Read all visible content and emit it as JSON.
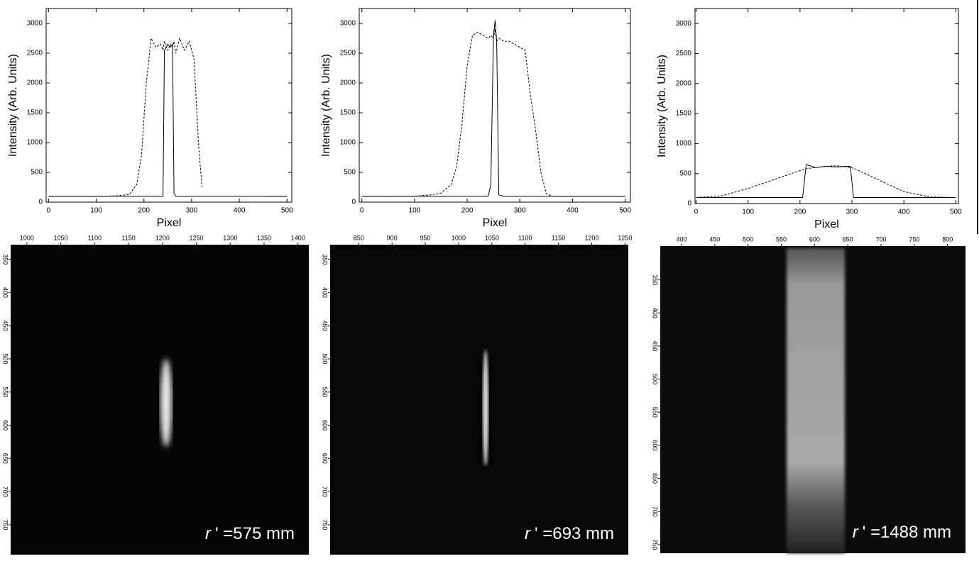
{
  "chart_data": [
    {
      "type": "line",
      "xlabel": "Pixel",
      "ylabel": "Intensity (Arb. Units)",
      "x": [
        0,
        40,
        80,
        120,
        150,
        170,
        185,
        195,
        205,
        215,
        225,
        235,
        240,
        243,
        247,
        250,
        255,
        260,
        263,
        267,
        275,
        285,
        295,
        305,
        315,
        322,
        330,
        360,
        400,
        450,
        460,
        500
      ],
      "series": [
        {
          "color": "#000000",
          "dash": false,
          "values": [
            100,
            100,
            100,
            100,
            100,
            100,
            100,
            100,
            100,
            100,
            100,
            100,
            100,
            2550,
            2600,
            2650,
            2600,
            2650,
            150,
            100,
            100,
            100,
            100,
            100,
            100,
            100,
            100,
            100,
            100,
            100,
            100,
            100
          ]
        },
        {
          "color": "#000000",
          "dash": true,
          "values": [
            100,
            100,
            100,
            100,
            110,
            130,
            300,
            800,
            2000,
            2750,
            2600,
            2650,
            2550,
            2700,
            2600,
            2550,
            2650,
            2600,
            2700,
            2500,
            2750,
            2550,
            2700,
            2400,
            900,
            250,
            null,
            null,
            null,
            null,
            100,
            100
          ]
        }
      ],
      "xlim": [
        -5,
        510
      ],
      "ylim": [
        0,
        3250
      ],
      "xticks": [
        0,
        100,
        200,
        300,
        400,
        500
      ],
      "yticks": [
        0,
        500,
        1000,
        1500,
        2000,
        2500,
        3000
      ]
    },
    {
      "type": "line",
      "xlabel": "Pixel",
      "ylabel": "Intensity (Arb. Units)",
      "x": [
        0,
        50,
        100,
        130,
        150,
        170,
        180,
        190,
        200,
        210,
        220,
        230,
        240,
        245,
        250,
        253,
        256,
        260,
        270,
        280,
        290,
        300,
        310,
        320,
        330,
        340,
        350,
        360,
        400,
        450,
        500
      ],
      "series": [
        {
          "color": "#000000",
          "dash": false,
          "values": [
            100,
            100,
            100,
            100,
            100,
            100,
            100,
            100,
            100,
            100,
            100,
            100,
            100,
            300,
            2800,
            3050,
            2700,
            120,
            100,
            100,
            100,
            100,
            100,
            100,
            100,
            100,
            100,
            100,
            100,
            100,
            100
          ]
        },
        {
          "color": "#000000",
          "dash": true,
          "values": [
            100,
            100,
            100,
            120,
            150,
            300,
            600,
            1300,
            2300,
            2800,
            2850,
            2800,
            2750,
            2800,
            2750,
            2900,
            2700,
            2750,
            2700,
            2700,
            2650,
            2600,
            2550,
            1800,
            1200,
            500,
            150,
            100,
            100,
            100,
            100
          ]
        }
      ],
      "xlim": [
        -5,
        510
      ],
      "ylim": [
        0,
        3250
      ],
      "xticks": [
        0,
        100,
        200,
        300,
        400,
        500
      ],
      "yticks": [
        0,
        500,
        1000,
        1500,
        2000,
        2500,
        3000
      ]
    },
    {
      "type": "line",
      "xlabel": "Pixel",
      "ylabel": "Intensity (Arb. Units)",
      "x": [
        0,
        50,
        100,
        150,
        200,
        205,
        212,
        230,
        250,
        270,
        290,
        297,
        303,
        350,
        400,
        450,
        500
      ],
      "series": [
        {
          "color": "#000000",
          "dash": false,
          "values": [
            100,
            100,
            100,
            100,
            100,
            100,
            650,
            600,
            620,
            610,
            620,
            620,
            100,
            100,
            100,
            100,
            100
          ]
        },
        {
          "color": "#000000",
          "dash": true,
          "values": [
            100,
            130,
            250,
            400,
            550,
            560,
            580,
            600,
            620,
            630,
            610,
            600,
            590,
            400,
            200,
            110,
            100
          ]
        }
      ],
      "xlim": [
        -2,
        505
      ],
      "ylim": [
        0,
        3250
      ],
      "xticks": [
        0,
        100,
        200,
        300,
        400,
        500
      ],
      "yticks": [
        0,
        500,
        1000,
        1500,
        2000,
        2500,
        3000
      ]
    },
    {
      "type": "image",
      "annotation_symbol": "r",
      "annotation": "' =575 mm",
      "xlim": [
        976,
        1416
      ],
      "ylim": [
        328,
        795
      ],
      "xticks": [
        1000,
        1050,
        1100,
        1150,
        1200,
        1250,
        1300,
        1350,
        1400
      ],
      "yticks": [
        350,
        400,
        450,
        500,
        550,
        600,
        650,
        700,
        750
      ]
    },
    {
      "type": "image",
      "annotation_symbol": "r",
      "annotation": "' =693 mm",
      "xlim": [
        807,
        1255
      ],
      "ylim": [
        328,
        795
      ],
      "xticks": [
        850,
        900,
        950,
        1000,
        1050,
        1100,
        1150,
        1200,
        1250
      ],
      "yticks": [
        350,
        400,
        450,
        500,
        550,
        600,
        650,
        700,
        750
      ]
    },
    {
      "type": "image",
      "annotation_symbol": "r",
      "annotation": "' =1488 mm",
      "xlim": [
        368,
        827
      ],
      "ylim": [
        299,
        763
      ],
      "xticks": [
        400,
        450,
        500,
        550,
        600,
        650,
        700,
        750,
        800
      ],
      "yticks": [
        350,
        400,
        450,
        500,
        550,
        600,
        650,
        700,
        750
      ]
    }
  ]
}
